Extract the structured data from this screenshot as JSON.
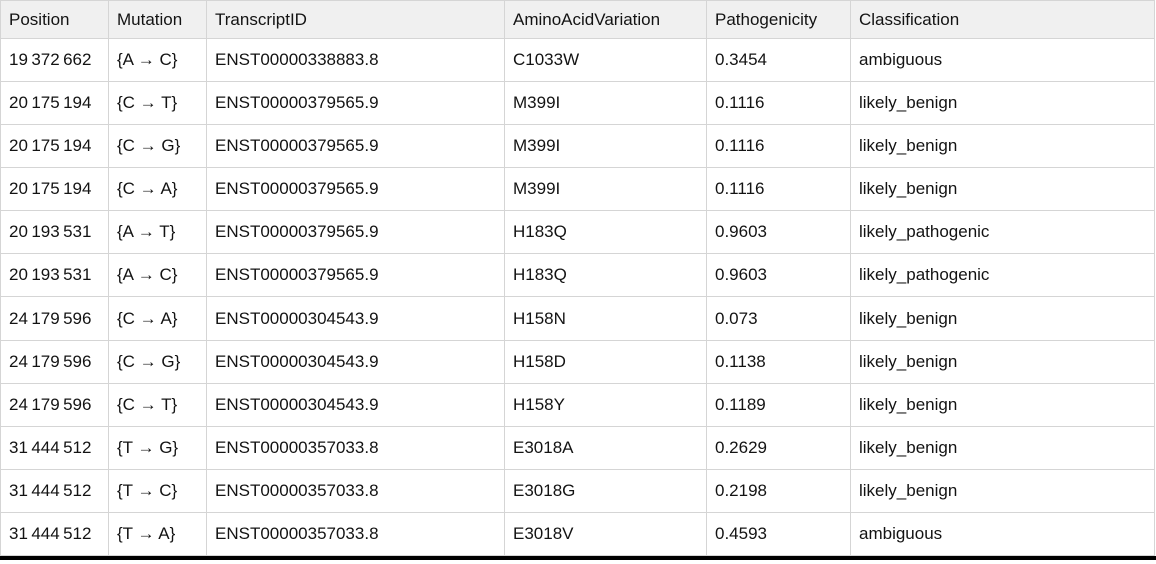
{
  "chart_data": {
    "type": "table",
    "columns": [
      "Position",
      "Mutation",
      "TranscriptID",
      "AminoAcidVariation",
      "Pathogenicity",
      "Classification"
    ],
    "column_keys": [
      "position",
      "mutation",
      "transcript-id",
      "amino-acid-variation",
      "pathogenicity",
      "classification"
    ],
    "rows": [
      [
        "19 372 662",
        "{A → C}",
        "ENST00000338883.8",
        "C1033W",
        "0.3454",
        "ambiguous"
      ],
      [
        "20 175 194",
        "{C → T}",
        "ENST00000379565.9",
        "M399I",
        "0.1116",
        "likely_benign"
      ],
      [
        "20 175 194",
        "{C → G}",
        "ENST00000379565.9",
        "M399I",
        "0.1116",
        "likely_benign"
      ],
      [
        "20 175 194",
        "{C → A}",
        "ENST00000379565.9",
        "M399I",
        "0.1116",
        "likely_benign"
      ],
      [
        "20 193 531",
        "{A → T}",
        "ENST00000379565.9",
        "H183Q",
        "0.9603",
        "likely_pathogenic"
      ],
      [
        "20 193 531",
        "{A → C}",
        "ENST00000379565.9",
        "H183Q",
        "0.9603",
        "likely_pathogenic"
      ],
      [
        "24 179 596",
        "{C → A}",
        "ENST00000304543.9",
        "H158N",
        "0.073",
        "likely_benign"
      ],
      [
        "24 179 596",
        "{C → G}",
        "ENST00000304543.9",
        "H158D",
        "0.1138",
        "likely_benign"
      ],
      [
        "24 179 596",
        "{C → T}",
        "ENST00000304543.9",
        "H158Y",
        "0.1189",
        "likely_benign"
      ],
      [
        "31 444 512",
        "{T → G}",
        "ENST00000357033.8",
        "E3018A",
        "0.2629",
        "likely_benign"
      ],
      [
        "31 444 512",
        "{T → C}",
        "ENST00000357033.8",
        "E3018G",
        "0.2198",
        "likely_benign"
      ],
      [
        "31 444 512",
        "{T → A}",
        "ENST00000357033.8",
        "E3018V",
        "0.4593",
        "ambiguous"
      ]
    ],
    "layout": {
      "grid": true,
      "header_background": "#f0f0f0",
      "grid_color": "#d5d5d5",
      "bottom_rule_color": "#000000",
      "text_color": "#131313"
    }
  }
}
